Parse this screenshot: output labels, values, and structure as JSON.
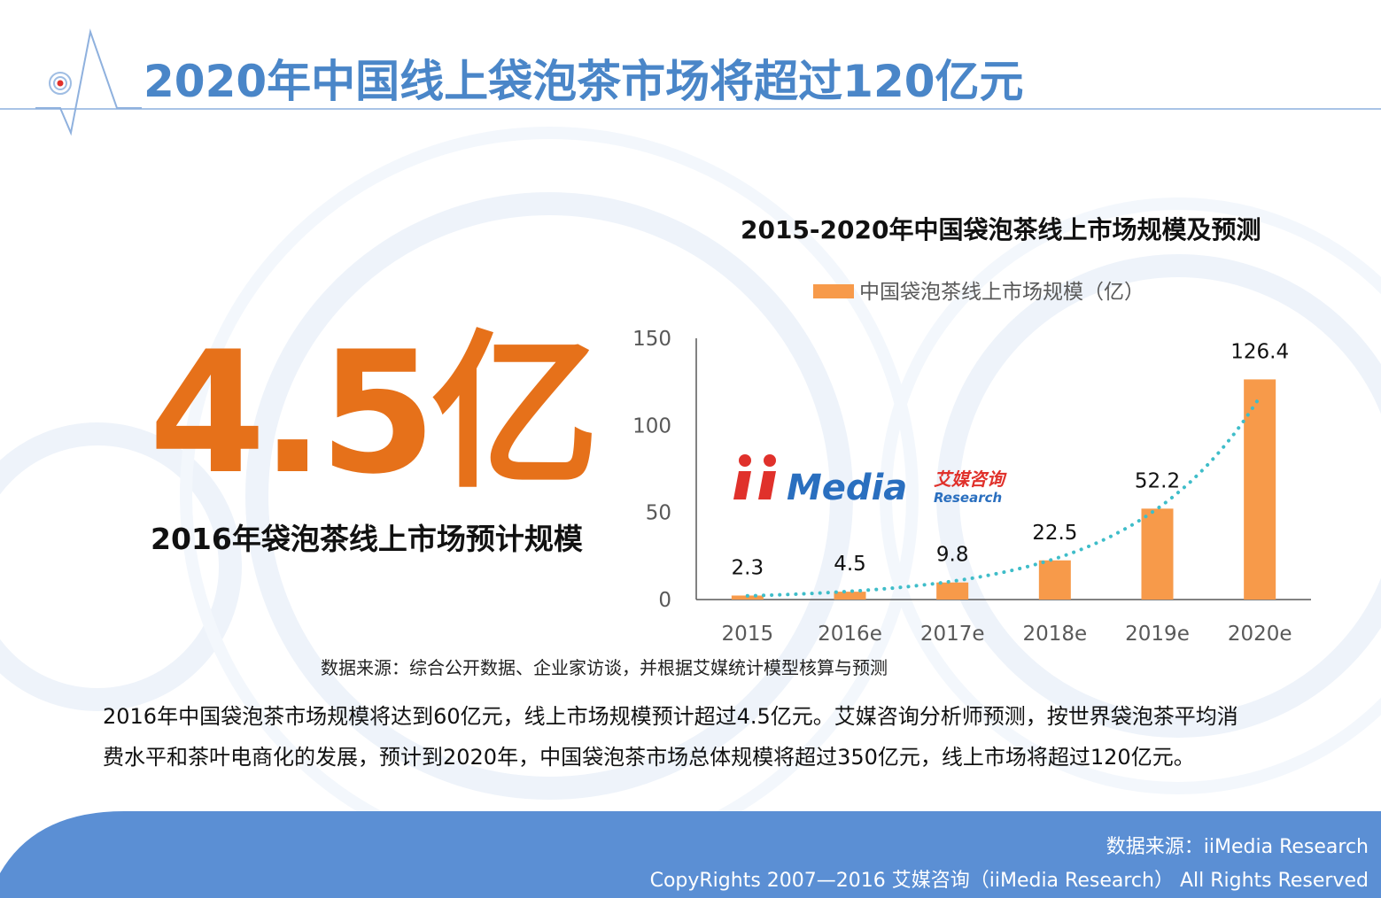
{
  "header": {
    "title": "2020年中国线上袋泡茶市场将超过120亿元"
  },
  "highlight": {
    "value": "4.5亿",
    "caption": "2016年袋泡茶线上市场预计规模"
  },
  "chart_data": {
    "type": "bar",
    "title": "2015-2020年中国袋泡茶线上市场规模及预测",
    "categories": [
      "2015",
      "2016e",
      "2017e",
      "2018e",
      "2019e",
      "2020e"
    ],
    "series": [
      {
        "name": "中国袋泡茶线上市场规模（亿）",
        "values": [
          2.3,
          4.5,
          9.8,
          22.5,
          52.2,
          126.4
        ],
        "labels": [
          "2.3",
          "4.5",
          "9.8",
          "22.5",
          "52.2",
          "126.4"
        ]
      }
    ],
    "ylim": [
      0,
      150
    ],
    "yticks": [
      "0",
      "50",
      "100",
      "150"
    ],
    "trendline": "exponential, dotted",
    "grid": false,
    "legend_position": "top",
    "colors": {
      "bar": "#f79a4a",
      "trend": "#3fbdc9",
      "axis": "#555555"
    }
  },
  "watermark_logo": {
    "brand": "iiMedia",
    "cn": "艾媒咨询",
    "en": "Research"
  },
  "source_note": "数据来源：综合公开数据、企业家访谈，并根据艾媒统计模型核算与预测",
  "body": {
    "line1": "2016年中国袋泡茶市场规模将达到60亿元，线上市场规模预计超过4.5亿元。艾媒咨询分析师预测，按世界袋泡茶平均消",
    "line2": "费水平和茶叶电商化的发展，预计到2020年，中国袋泡茶市场总体规模将超过350亿元，线上市场将超过120亿元。"
  },
  "footer": {
    "source": "数据来源：iiMedia Research",
    "copyright": "CopyRights 2007—2016 艾媒咨询（iiMedia Research） All Rights Reserved"
  },
  "colors": {
    "title": "#4a86c8",
    "highlight": "#e6711a",
    "footer_band": "#5b8fd4"
  }
}
